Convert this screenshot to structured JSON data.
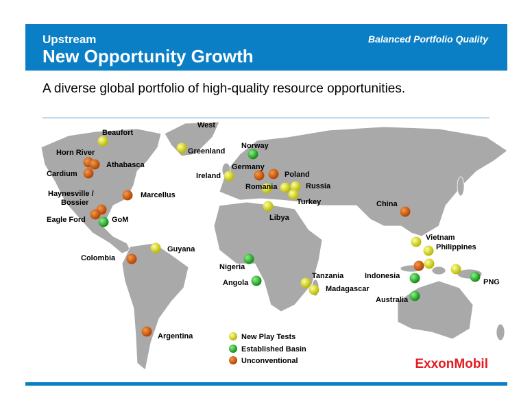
{
  "header": {
    "section": "Upstream",
    "title": "New Opportunity Growth",
    "tagline": "Balanced Portfolio Quality"
  },
  "headline": "A diverse global portfolio of high-quality resource opportunities.",
  "map": {
    "labels": [
      "Beaufort",
      "West",
      "Greenland",
      "Norway",
      "Horn River",
      "Athabasca",
      "Cardium",
      "Germany",
      "Ireland",
      "Poland",
      "Romania",
      "Russia",
      "Turkey",
      "Haynesville /",
      "Bossier",
      "Marcellus",
      "China",
      "Libya",
      "Eagle Ford",
      "GoM",
      "Vietnam",
      "Philippines",
      "Guyana",
      "Colombia",
      "Nigeria",
      "Indonesia",
      "Tanzania",
      "Angola",
      "Madagascar",
      "PNG",
      "Australia",
      "Argentina"
    ]
  },
  "legend": [
    "New Play Tests",
    "Established Basin",
    "Unconventional"
  ],
  "logo": "ExxonMobil"
}
